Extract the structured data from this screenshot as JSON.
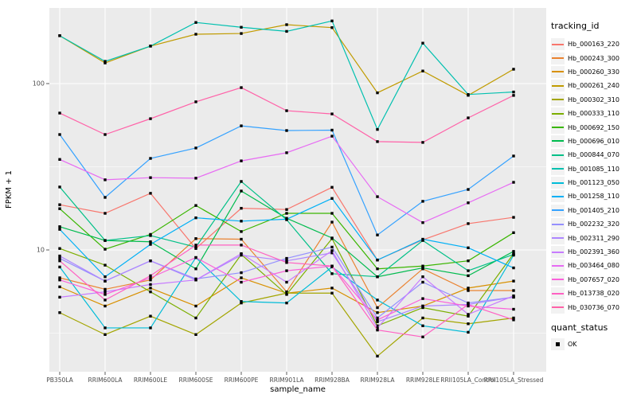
{
  "chart_data": {
    "type": "line",
    "title": "",
    "xlabel": "sample_name",
    "ylabel": "FPKM + 1",
    "y_scale": "log10",
    "y_ticks": [
      10,
      100
    ],
    "y_minor_ticks": [
      3.162,
      31.62,
      316.2
    ],
    "ylim": [
      1.85,
      285
    ],
    "grid": true,
    "legend_position": "right",
    "legend_title": "tracking_id",
    "point_marker": "black-square",
    "x_categories": [
      "PB350LA",
      "RRIM600LA",
      "RRIM600LE",
      "RRIM600SE",
      "RRIM600PE",
      "RRIM901LA",
      "RRIM928BA",
      "RRIM928LA",
      "RRIM928LE",
      "RRII105LA_Control",
      "RRII105LA_Stressed"
    ],
    "series": [
      {
        "name": "Hb_000163_220",
        "color": "#F8766D",
        "values": [
          18.7,
          16.6,
          21.9,
          10.2,
          17.8,
          17.5,
          23.8,
          8.7,
          11.5,
          14.4,
          15.7
        ]
      },
      {
        "name": "Hb_000243_300",
        "color": "#EA8331",
        "values": [
          6.8,
          5.8,
          6.6,
          11.7,
          11.6,
          5.6,
          14.7,
          4.5,
          7.7,
          5.7,
          5.7
        ]
      },
      {
        "name": "Hb_000260_330",
        "color": "#D89000",
        "values": [
          6.0,
          4.6,
          5.9,
          4.6,
          6.8,
          5.5,
          5.9,
          4.2,
          4.6,
          5.9,
          6.5
        ]
      },
      {
        "name": "Hb_000261_240",
        "color": "#C09B00",
        "values": [
          194,
          133,
          168,
          198,
          200,
          226,
          217,
          88,
          119,
          85,
          122
        ]
      },
      {
        "name": "Hb_000302_310",
        "color": "#A3A500",
        "values": [
          4.2,
          3.1,
          4.0,
          3.1,
          4.8,
          5.5,
          5.5,
          2.3,
          3.9,
          3.6,
          3.9
        ]
      },
      {
        "name": "Hb_000333_110",
        "color": "#7CAE00",
        "values": [
          10.2,
          8.1,
          5.6,
          3.9,
          9.4,
          5.4,
          11.7,
          3.5,
          4.5,
          4.0,
          9.5
        ]
      },
      {
        "name": "Hb_000692_150",
        "color": "#39B600",
        "values": [
          17.7,
          10.1,
          12.4,
          18.5,
          12.9,
          16.6,
          16.6,
          7.7,
          8.0,
          8.6,
          12.7
        ]
      },
      {
        "name": "Hb_000696_010",
        "color": "#00BB4E",
        "values": [
          13.8,
          11.4,
          11.2,
          7.7,
          22.6,
          15.5,
          11.8,
          6.9,
          7.8,
          7.0,
          9.8
        ]
      },
      {
        "name": "Hb_000844_070",
        "color": "#00C087",
        "values": [
          23.9,
          11.4,
          12.2,
          10.4,
          25.8,
          15.2,
          7.2,
          6.9,
          11.4,
          7.5,
          9.4
        ]
      },
      {
        "name": "Hb_001085_110",
        "color": "#00C0AF",
        "values": [
          194,
          136,
          168,
          233,
          218,
          206,
          238,
          53,
          175,
          86,
          89
        ]
      },
      {
        "name": "Hb_001123_050",
        "color": "#00BCD8",
        "values": [
          7.9,
          3.4,
          3.4,
          9.0,
          4.9,
          4.8,
          7.9,
          5.0,
          3.5,
          3.2,
          9.3
        ]
      },
      {
        "name": "Hb_001258_110",
        "color": "#00B0F6",
        "values": [
          13.3,
          6.9,
          10.8,
          15.6,
          14.9,
          15.3,
          20.4,
          8.7,
          11.6,
          10.3,
          7.8
        ]
      },
      {
        "name": "Hb_001405_210",
        "color": "#35A2FF",
        "values": [
          49.4,
          20.7,
          35.5,
          41.0,
          55.7,
          52.2,
          52.5,
          12.3,
          19.6,
          23.1,
          36.7
        ]
      },
      {
        "name": "Hb_002232_320",
        "color": "#9590FF",
        "values": [
          8.9,
          6.5,
          8.6,
          6.7,
          7.3,
          8.9,
          10.4,
          3.9,
          6.4,
          4.8,
          5.2
        ]
      },
      {
        "name": "Hb_002311_290",
        "color": "#AE87FF",
        "values": [
          9.2,
          6.5,
          8.6,
          6.6,
          9.3,
          8.6,
          9.6,
          3.7,
          4.6,
          4.7,
          5.2
        ]
      },
      {
        "name": "Hb_002391_360",
        "color": "#C77CFF",
        "values": [
          5.2,
          5.6,
          6.2,
          6.6,
          9.5,
          6.4,
          9.9,
          3.4,
          6.9,
          4.1,
          5.3
        ]
      },
      {
        "name": "Hb_003464_080",
        "color": "#E76BF3",
        "values": [
          35.0,
          26.4,
          27.2,
          27.0,
          34.3,
          38.4,
          48.3,
          20.9,
          14.6,
          19.2,
          25.5
        ]
      },
      {
        "name": "Hb_007657_020",
        "color": "#FA62DB",
        "values": [
          6.6,
          5.4,
          6.8,
          9.0,
          6.4,
          7.5,
          8.0,
          3.8,
          5.1,
          4.6,
          4.4
        ]
      },
      {
        "name": "Hb_013738_020",
        "color": "#FF61C3",
        "values": [
          8.6,
          5.0,
          7.0,
          10.7,
          10.7,
          8.4,
          8.0,
          3.3,
          3.0,
          4.7,
          3.8
        ]
      },
      {
        "name": "Hb_030736_070",
        "color": "#FF62A8",
        "values": [
          66.5,
          49.4,
          61.5,
          77.7,
          94.6,
          68.7,
          65.7,
          44.8,
          44.3,
          62.2,
          84.9
        ]
      }
    ],
    "quant_legend": {
      "title": "quant_status",
      "items": [
        {
          "label": "OK",
          "marker": "square",
          "color": "#000000"
        }
      ]
    }
  },
  "style_colors": {
    "panel_bg": "#EBEBEB",
    "grid_major": "#FFFFFF",
    "grid_minor": "#F7F7F7",
    "tick_text": "#4D4D4D",
    "axis_title": "#000000"
  }
}
